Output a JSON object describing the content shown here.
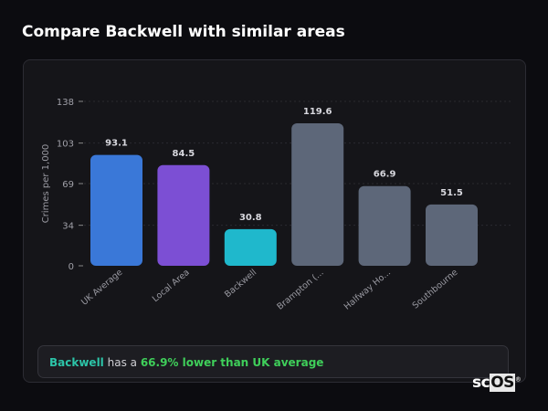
{
  "page_title": "Compare Backwell with similar areas",
  "summary": {
    "area": "Backwell",
    "middle": " has a ",
    "highlight": "66.9% lower than UK average"
  },
  "logo": {
    "text_a": "sc",
    "text_b": "OS",
    "mark": "®"
  },
  "chart_data": {
    "type": "bar",
    "title": "",
    "xlabel": "",
    "ylabel": "Crimes per 1,000",
    "ylim": [
      0,
      138
    ],
    "yticks": [
      0,
      34,
      69,
      103,
      138
    ],
    "grid": true,
    "categories": [
      "UK Average",
      "Local Area",
      "Backwell",
      "Brampton (...",
      "Halfway Ho...",
      "Southbourne"
    ],
    "values": [
      93.1,
      84.5,
      30.8,
      119.6,
      66.9,
      51.5
    ],
    "value_labels": [
      "93.1",
      "84.5",
      "30.8",
      "119.6",
      "66.9",
      "51.5"
    ],
    "colors": [
      "#3a78d8",
      "#7c4fd4",
      "#1fb8cc",
      "#5d6779",
      "#5d6779",
      "#5d6779"
    ]
  }
}
